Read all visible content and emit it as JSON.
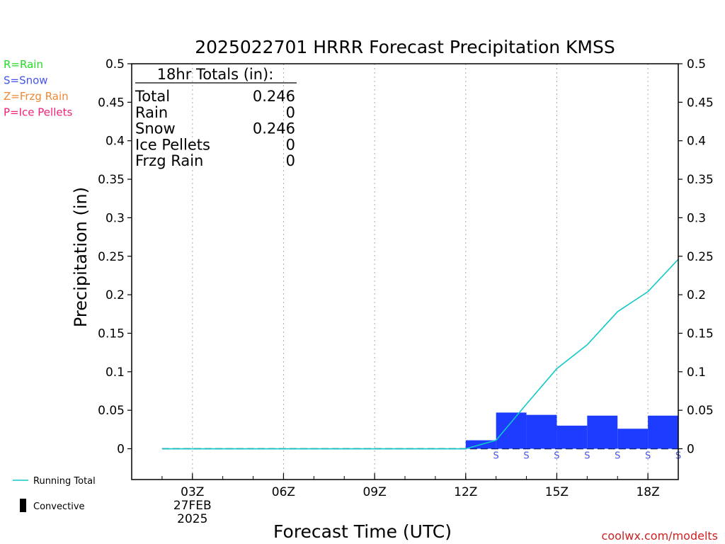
{
  "chart_data": {
    "type": "bar",
    "title": "2025022701 HRRR Forecast Precipitation KMSS",
    "xlabel": "Forecast Time (UTC)",
    "ylabel": "Precipitation (in)",
    "ylim": [
      -0.04,
      0.5
    ],
    "xlim": [
      1.0,
      19.0
    ],
    "y_ticks": [
      "0",
      "0.05",
      "0.1",
      "0.15",
      "0.2",
      "0.25",
      "0.3",
      "0.35",
      "0.4",
      "0.45",
      "0.5"
    ],
    "x_ticks": [
      {
        "hour": 3,
        "label": "03Z"
      },
      {
        "hour": 6,
        "label": "06Z"
      },
      {
        "hour": 9,
        "label": "09Z"
      },
      {
        "hour": 12,
        "label": "12Z"
      },
      {
        "hour": 15,
        "label": "15Z"
      },
      {
        "hour": 18,
        "label": "18Z"
      }
    ],
    "date_label": "27FEB",
    "year_label": "2025",
    "grid": true,
    "series": [
      {
        "name": "Snow",
        "type": "bar",
        "color": "#1e3cff",
        "hours": [
          13,
          14,
          15,
          16,
          17,
          18,
          19
        ],
        "values": [
          0.011,
          0.047,
          0.044,
          0.03,
          0.043,
          0.026,
          0.043
        ],
        "marker": "S"
      },
      {
        "name": "Running Total",
        "type": "line",
        "color": "#11c8c8",
        "hours": [
          2,
          12,
          13,
          14,
          15,
          16,
          17,
          18,
          19
        ],
        "values": [
          0,
          0,
          0.011,
          0.058,
          0.104,
          0.135,
          0.178,
          0.204,
          0.246
        ]
      }
    ],
    "precip_type_legend": [
      {
        "text": "R=Rain",
        "color": "#22dd22"
      },
      {
        "text": "S=Snow",
        "color": "#4455ee"
      },
      {
        "text": "Z=Frzg Rain",
        "color": "#ee8833"
      },
      {
        "text": "P=Ice Pellets",
        "color": "#ee2277"
      }
    ],
    "totals": {
      "header": "18hr Totals (in):",
      "rows": [
        {
          "label": "Total",
          "value": "0.246"
        },
        {
          "label": "Rain",
          "value": "0"
        },
        {
          "label": "Snow",
          "value": "0.246"
        },
        {
          "label": "Ice Pellets",
          "value": "0"
        },
        {
          "label": "Frzg Rain",
          "value": "0"
        }
      ]
    },
    "line_legend": [
      {
        "label": "Running Total",
        "color": "#11c8c8"
      },
      {
        "label": "Convective",
        "color": "#000000"
      }
    ]
  },
  "credit": "coolwx.com/modelts",
  "colors": {
    "credit": "#cc2222",
    "axis": "#000000",
    "grid": "#aaaaaa"
  }
}
